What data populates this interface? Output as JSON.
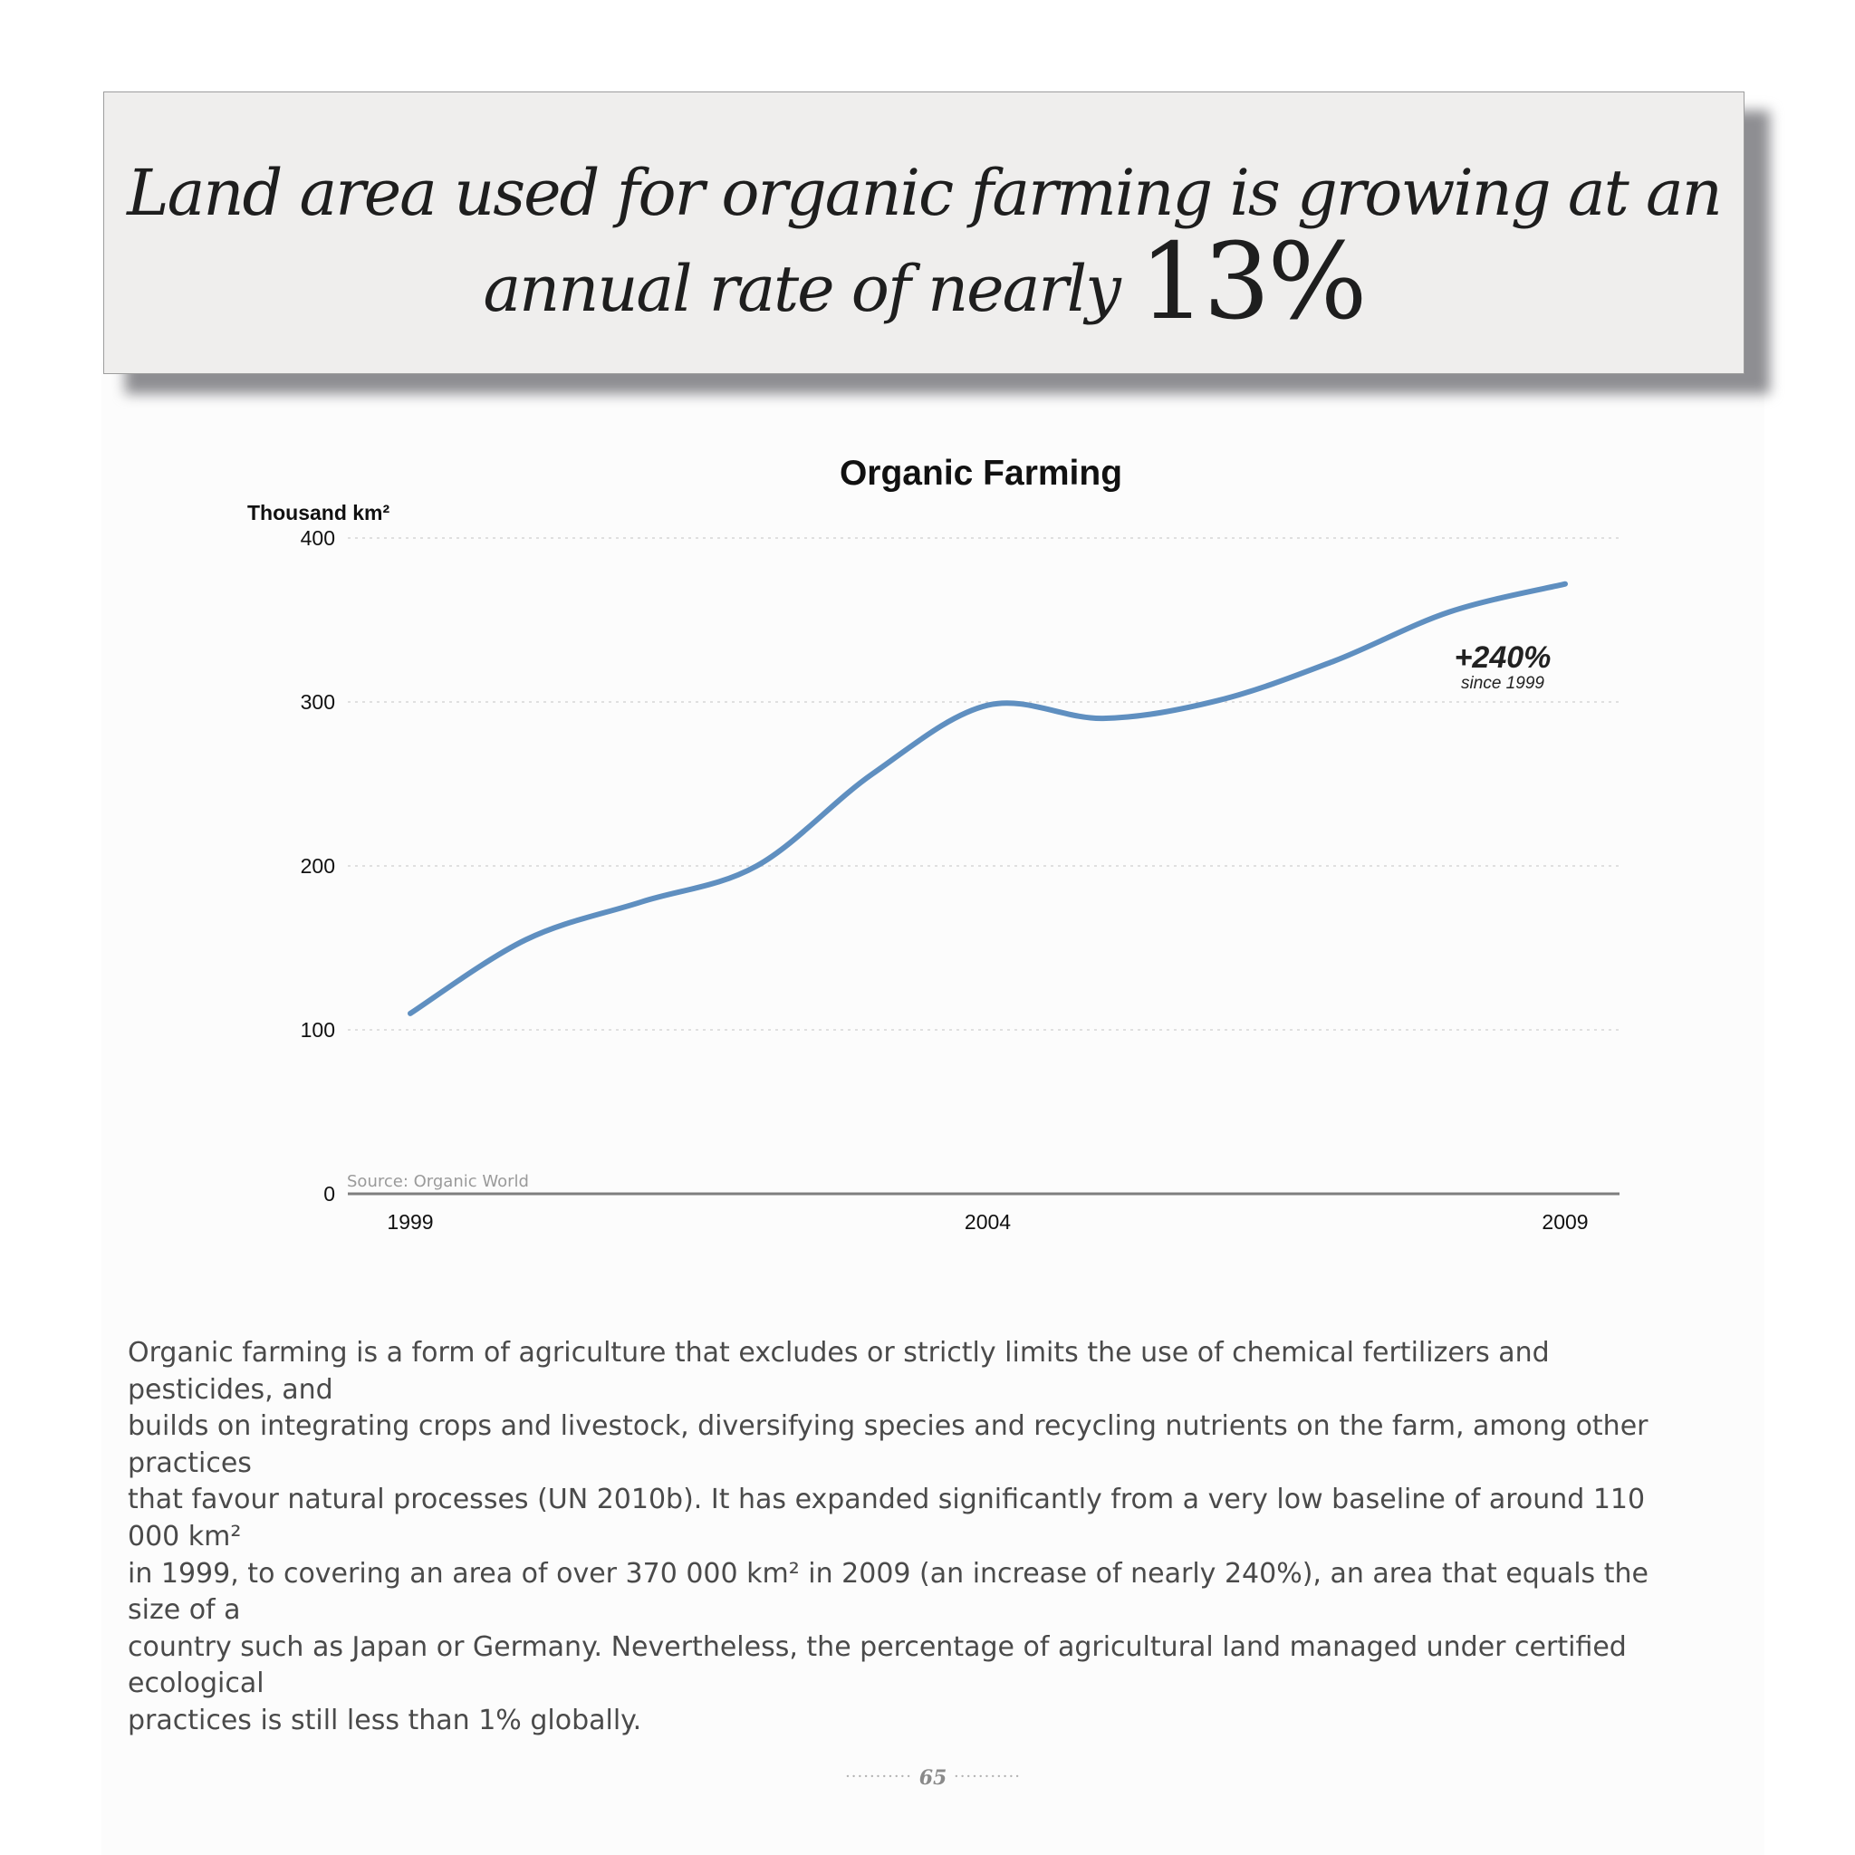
{
  "headline": {
    "line1": "Land area used for organic farming is growing at an",
    "line2_text": "annual rate of nearly",
    "line2_figure": "13%"
  },
  "chart_data": {
    "type": "line",
    "title": "Organic Farming",
    "ylabel": "Thousand km²",
    "ylim": [
      0,
      400
    ],
    "yticks": [
      0,
      100,
      200,
      300,
      400
    ],
    "xlim": [
      1999,
      2009
    ],
    "x_tick_labels": [
      "1999",
      "2004",
      "2009"
    ],
    "x": [
      1999,
      2000,
      2001,
      2002,
      2003,
      2004,
      2005,
      2006,
      2007,
      2008,
      2009
    ],
    "series": [
      {
        "values": [
          110,
          155,
          178,
          200,
          256,
          298,
          290,
          301,
          325,
          355,
          372
        ]
      }
    ],
    "grid": true,
    "line_color": "#5f8fc0",
    "annotation": {
      "value": "+240%",
      "sub": "since 1999"
    },
    "source": "Source: Organic World"
  },
  "body_text": [
    "Organic farming is a form of agriculture that excludes or strictly limits the use of chemical fertilizers and pesticides, and",
    "builds on integrating crops and livestock, diversifying species and recycling nutrients on the farm, among other practices",
    "that favour natural processes (UN 2010b). It has expanded signiﬁcantly from a very low baseline of around 110 000 km²",
    "in 1999, to covering an area of over 370 000 km² in 2009 (an increase of nearly 240%), an area that equals the size of a",
    "country such as Japan or Germany. Nevertheless, the percentage of agricultural land managed under certiﬁed ecological",
    "practices is still less than 1% globally."
  ],
  "page_number": "65"
}
